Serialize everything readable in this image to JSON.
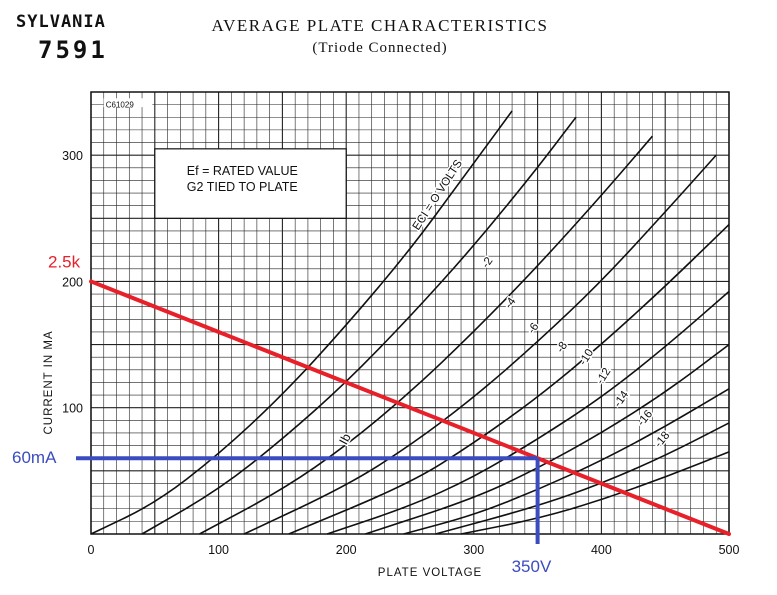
{
  "header": {
    "brand": "SYLVANIA",
    "tube": "7591",
    "title": "AVERAGE PLATE CHARACTERISTICS",
    "subtitle": "(Triode Connected)"
  },
  "chart_data": {
    "type": "line",
    "code": "C61029",
    "xlabel": "PLATE VOLTAGE",
    "ylabel": "CURRENT IN MA",
    "xlim": [
      0,
      500
    ],
    "ylim": [
      0,
      350
    ],
    "x_ticks": [
      0,
      100,
      200,
      300,
      400,
      500
    ],
    "y_ticks": [
      100,
      200,
      300
    ],
    "grid": true,
    "notes": [
      "Ef = RATED VALUE",
      "G2 TIED TO PLATE"
    ],
    "curve_label": "Ib",
    "series": [
      {
        "name": "ECI = O VOLTS",
        "points": [
          [
            0,
            0
          ],
          [
            50,
            24
          ],
          [
            100,
            63
          ],
          [
            150,
            110
          ],
          [
            200,
            165
          ],
          [
            250,
            225
          ],
          [
            290,
            280
          ],
          [
            330,
            335
          ]
        ]
      },
      {
        "name": "-2",
        "points": [
          [
            40,
            0
          ],
          [
            100,
            35
          ],
          [
            150,
            75
          ],
          [
            200,
            120
          ],
          [
            250,
            172
          ],
          [
            300,
            228
          ],
          [
            350,
            290
          ],
          [
            380,
            330
          ]
        ]
      },
      {
        "name": "-4",
        "points": [
          [
            85,
            0
          ],
          [
            150,
            35
          ],
          [
            200,
            70
          ],
          [
            250,
            112
          ],
          [
            300,
            160
          ],
          [
            350,
            212
          ],
          [
            400,
            268
          ],
          [
            440,
            315
          ]
        ]
      },
      {
        "name": "-6",
        "points": [
          [
            120,
            0
          ],
          [
            200,
            38
          ],
          [
            250,
            70
          ],
          [
            300,
            108
          ],
          [
            350,
            152
          ],
          [
            400,
            200
          ],
          [
            450,
            255
          ],
          [
            490,
            300
          ]
        ]
      },
      {
        "name": "-8",
        "points": [
          [
            155,
            0
          ],
          [
            250,
            40
          ],
          [
            300,
            72
          ],
          [
            350,
            108
          ],
          [
            400,
            150
          ],
          [
            450,
            196
          ],
          [
            500,
            245
          ]
        ]
      },
      {
        "name": "-10",
        "points": [
          [
            185,
            0
          ],
          [
            250,
            22
          ],
          [
            300,
            45
          ],
          [
            350,
            75
          ],
          [
            400,
            108
          ],
          [
            450,
            148
          ],
          [
            500,
            192
          ]
        ]
      },
      {
        "name": "-12",
        "points": [
          [
            215,
            0
          ],
          [
            300,
            28
          ],
          [
            350,
            52
          ],
          [
            400,
            80
          ],
          [
            450,
            112
          ],
          [
            500,
            150
          ]
        ]
      },
      {
        "name": "-14",
        "points": [
          [
            245,
            0
          ],
          [
            300,
            15
          ],
          [
            350,
            35
          ],
          [
            400,
            58
          ],
          [
            450,
            85
          ],
          [
            500,
            115
          ]
        ]
      },
      {
        "name": "-16",
        "points": [
          [
            270,
            0
          ],
          [
            350,
            22
          ],
          [
            400,
            40
          ],
          [
            450,
            62
          ],
          [
            500,
            88
          ]
        ]
      },
      {
        "name": "-18",
        "points": [
          [
            290,
            0
          ],
          [
            350,
            12
          ],
          [
            400,
            27
          ],
          [
            450,
            45
          ],
          [
            500,
            65
          ]
        ]
      }
    ],
    "load_line": {
      "label": "2.5k",
      "color": "#e8202a",
      "points": [
        [
          0,
          200
        ],
        [
          500,
          0
        ]
      ]
    },
    "operating_point": {
      "x": 350,
      "y": 60,
      "x_label": "350V",
      "y_label": "60mA",
      "color": "#3b4cc0"
    }
  }
}
